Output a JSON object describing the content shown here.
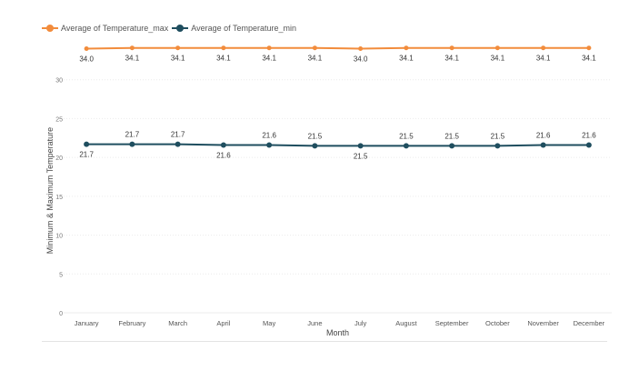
{
  "legend": {
    "max_label": "Average of Temperature_max",
    "min_label": "Average of Temperature_min"
  },
  "chart_data": {
    "type": "line",
    "xlabel": "Month",
    "ylabel": "Minimum & Maximum Temperature",
    "ylim": [
      0,
      35
    ],
    "yticks": [
      0,
      5,
      10,
      15,
      20,
      25,
      30
    ],
    "grid": true,
    "legend_position": "top-left",
    "categories": [
      "January",
      "February",
      "March",
      "April",
      "May",
      "June",
      "July",
      "August",
      "September",
      "October",
      "November",
      "December"
    ],
    "series": [
      {
        "name": "Average of Temperature_max",
        "color": "#f28c3c",
        "values": [
          34.0,
          34.1,
          34.1,
          34.1,
          34.1,
          34.1,
          34.0,
          34.1,
          34.1,
          34.1,
          34.1,
          34.1
        ],
        "labels": [
          "34.0",
          "34.1",
          "34.1",
          "34.1",
          "34.1",
          "34.1",
          "34.0",
          "34.1",
          "34.1",
          "34.1",
          "34.1",
          "34.1"
        ]
      },
      {
        "name": "Average of Temperature_min",
        "color": "#1f4e5f",
        "values": [
          21.7,
          21.7,
          21.7,
          21.6,
          21.6,
          21.5,
          21.5,
          21.5,
          21.5,
          21.5,
          21.6,
          21.6
        ],
        "labels": [
          "21.7",
          "21.7",
          "21.7",
          "21.6",
          "21.6",
          "21.5",
          "21.5",
          "21.5",
          "21.5",
          "21.5",
          "21.6",
          "21.6"
        ]
      }
    ]
  }
}
